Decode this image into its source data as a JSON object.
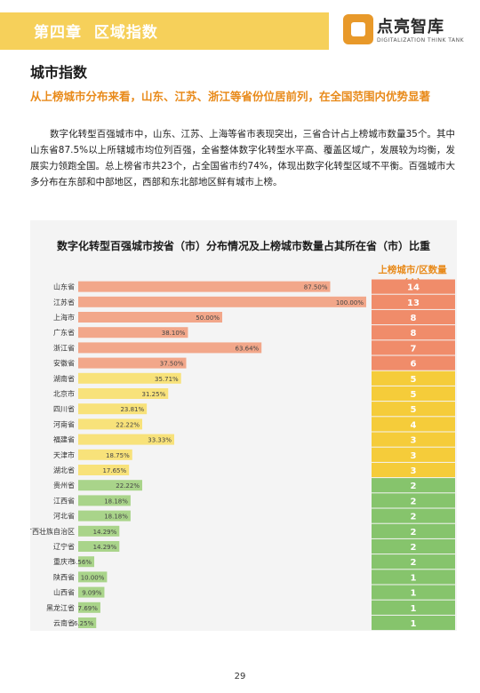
{
  "header": {
    "chapter": "第四章",
    "section": "区域指数"
  },
  "logo": {
    "name": "点亮智库",
    "sub": "DIGITALIZATION THINK TANK"
  },
  "section_title": "城市指数",
  "highlight": "从上榜城市分布来看，山东、江苏、浙江等省份位居前列，在全国范围内优势显著",
  "body": "数字化转型百强城市中，山东、江苏、上海等省市表现突出，三省合计占上榜城市数量35个。其中山东省87.5%以上所辖城市均位列百强，全省整体数字化转型水平高、覆盖区域广，发展较为均衡，发展实力领跑全国。总上榜省市共23个，占全国省市约74%，体现出数字化转型区域不平衡。百强城市大多分布在东部和中部地区，西部和东北部地区鲜有城市上榜。",
  "colors": {
    "header": "#f6d05a",
    "accent": "#e88a1a",
    "tier_high_bar": "#f2a78a",
    "tier_high_cell": "#f08c6a",
    "tier_mid_bar": "#f8e27a",
    "tier_mid_cell": "#f5cc3a",
    "tier_low_bar": "#a9d48a",
    "tier_low_cell": "#86c46c"
  },
  "chart_data": {
    "type": "bar",
    "orientation": "horizontal",
    "title": "数字化转型百强城市按省（市）分布情况及上榜城市数量占其所在省（市）比重",
    "count_header": "上榜城市/区数量（个）",
    "xlim": [
      0,
      100
    ],
    "grid": false,
    "categories": [
      "山东省",
      "江苏省",
      "上海市",
      "广东省",
      "浙江省",
      "安徽省",
      "湖南省",
      "北京市",
      "四川省",
      "河南省",
      "福建省",
      "天津市",
      "湖北省",
      "贵州省",
      "江西省",
      "河北省",
      "广西壮族自治区",
      "辽宁省",
      "重庆市",
      "陕西省",
      "山西省",
      "黑龙江省",
      "云南省"
    ],
    "series": [
      {
        "values": [
          87.5,
          100.0,
          50.0,
          38.1,
          63.64,
          37.5,
          35.71,
          31.25,
          23.81,
          22.22,
          33.33,
          18.75,
          17.65,
          22.22,
          18.18,
          18.18,
          14.29,
          14.29,
          5.56,
          10.0,
          9.09,
          7.69,
          6.25
        ]
      }
    ],
    "value_labels": [
      "87.50%",
      "100.00%",
      "50.00%",
      "38.10%",
      "63.64%",
      "37.50%",
      "35.71%",
      "31.25%",
      "23.81%",
      "22.22%",
      "33.33%",
      "18.75%",
      "17.65%",
      "22.22%",
      "18.18%",
      "18.18%",
      "14.29%",
      "14.29%",
      "5.56%",
      "10.00%",
      "9.09%",
      "7.69%",
      "6.25%"
    ],
    "counts": [
      14,
      13,
      8,
      8,
      7,
      6,
      5,
      5,
      5,
      4,
      3,
      3,
      3,
      2,
      2,
      2,
      2,
      2,
      2,
      1,
      1,
      1,
      1
    ]
  },
  "page_number": "29"
}
